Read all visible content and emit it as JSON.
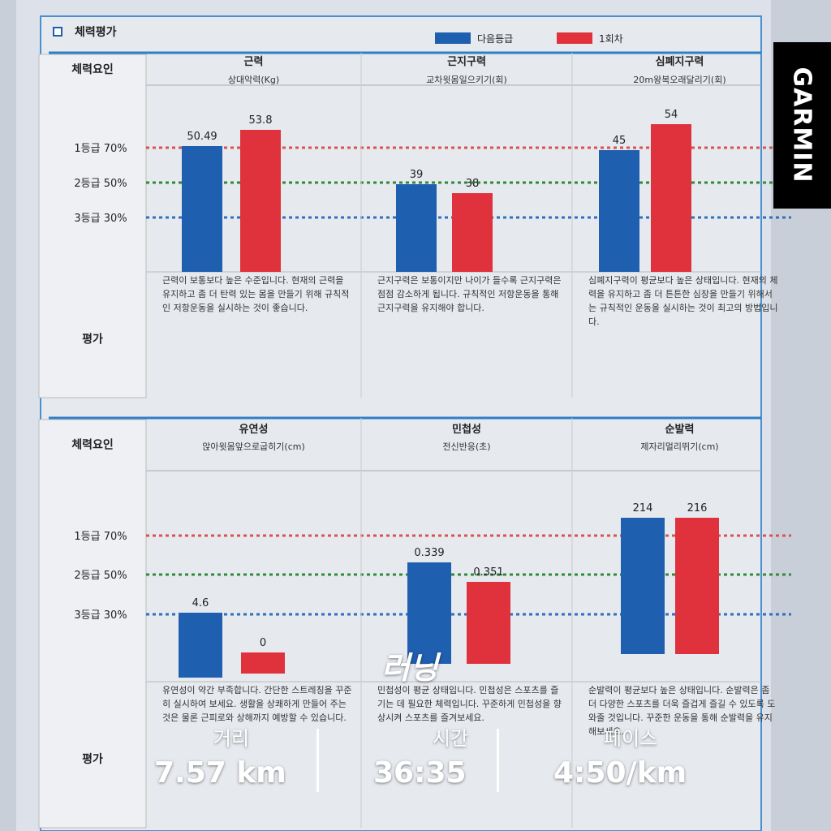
{
  "title": "체력평가",
  "legend": [
    {
      "label": "다음등급",
      "color": "#1f5fb0"
    },
    {
      "label": "1회차",
      "color": "#e0323c"
    }
  ],
  "grade_colors": [
    "#d9534f",
    "#2e8b3a",
    "#2f6fc0"
  ],
  "sections": [
    {
      "header": "체력요인",
      "grades": [
        "1등급 70%",
        "2등급 50%",
        "3등급 30%"
      ],
      "eval_label": "평가",
      "items": [
        {
          "name": "근력",
          "unit": "상대악력(Kg)",
          "values": [
            50.49,
            53.8
          ],
          "evaluation": "근력이 보통보다 높은 수준입니다. 현재의 근력을 유지하고 좀 더 탄력 있는 몸을 만들기 위해 규칙적인 저항운동을 실시하는 것이 좋습니다."
        },
        {
          "name": "근지구력",
          "unit": "교차윗몸일으키기(회)",
          "values": [
            39,
            38
          ],
          "evaluation": "근지구력은 보통이지만 나이가 들수록 근지구력은 점점 감소하게 됩니다. 규칙적인 저항운동을 통해 근지구력을 유지해야 합니다."
        },
        {
          "name": "심폐지구력",
          "unit": "20m왕복오래달리기(회)",
          "values": [
            45,
            54
          ],
          "evaluation": "심폐지구력이 평균보다 높은 상태입니다. 현재의 체력을 유지하고 좀 더 튼튼한 심장을 만들기 위해서는 규칙적인 운동을 실시하는 것이 최고의 방법입니다."
        }
      ]
    },
    {
      "header": "체력요인",
      "grades": [
        "1등급 70%",
        "2등급 50%",
        "3등급 30%"
      ],
      "eval_label": "평가",
      "items": [
        {
          "name": "유연성",
          "unit": "앉아윗몸앞으로굽히기(cm)",
          "values": [
            4.6,
            0
          ],
          "evaluation": "유연성이 약간 부족합니다. 간단한 스트레칭을 꾸준히 실시하여 보세요. 생활을 상쾌하게 만들어 주는 것은 물론 근피로와 상해까지 예방할 수 있습니다."
        },
        {
          "name": "민첩성",
          "unit": "전신반응(초)",
          "values": [
            0.339,
            0.351
          ],
          "evaluation": "민첩성이 평균 상태입니다. 민첩성은 스포츠를 즐기는 데 필요한 체력입니다. 꾸준하게 민첩성을 향상시켜 스포츠를 즐겨보세요."
        },
        {
          "name": "순발력",
          "unit": "제자리멀리뛰기(cm)",
          "values": [
            214,
            216
          ],
          "evaluation": "순발력이 평균보다 높은 상태입니다. 순발력은 좀 더 다양한 스포츠를 더욱 즐겁게 즐길 수 있도록 도와줄 것입니다. 꾸준한 운동을 통해 순발력을 유지해보세요."
        }
      ]
    }
  ],
  "overlay": {
    "brand": "GARMIN",
    "activity": "러닝",
    "stats": [
      {
        "label": "거리",
        "value": "7.57 km"
      },
      {
        "label": "시간",
        "value": "36:35"
      },
      {
        "label": "페이스",
        "value": "4:50/km"
      }
    ]
  }
}
